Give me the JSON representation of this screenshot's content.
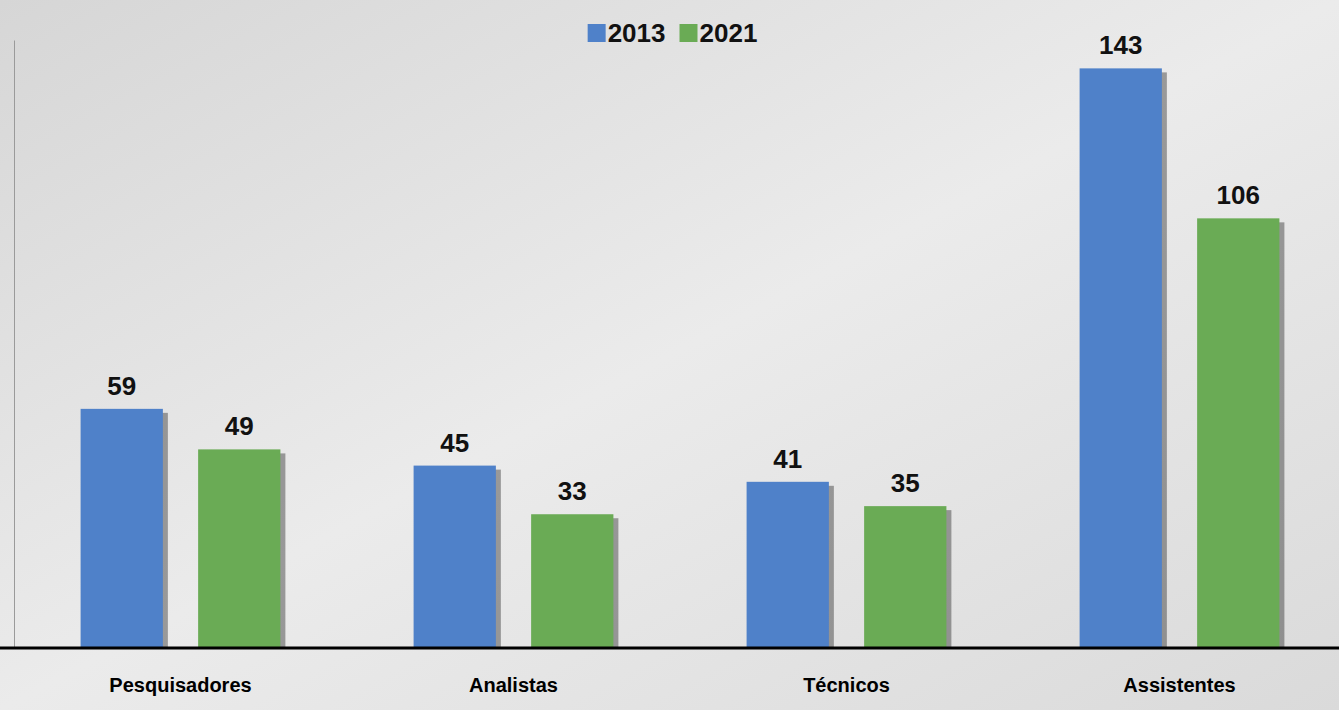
{
  "chart_data": {
    "type": "bar",
    "categories": [
      "Pesquisadores",
      "Analistas",
      "Técnicos",
      "Assistentes"
    ],
    "series": [
      {
        "name": "2013",
        "color": "#4f81c9",
        "values": [
          59,
          45,
          41,
          143
        ]
      },
      {
        "name": "2021",
        "color": "#6aab55",
        "values": [
          49,
          33,
          35,
          106
        ]
      }
    ],
    "ylim": [
      0,
      150
    ],
    "grid": false,
    "legend": "top",
    "data_labels": true,
    "tick_labels": "x"
  }
}
